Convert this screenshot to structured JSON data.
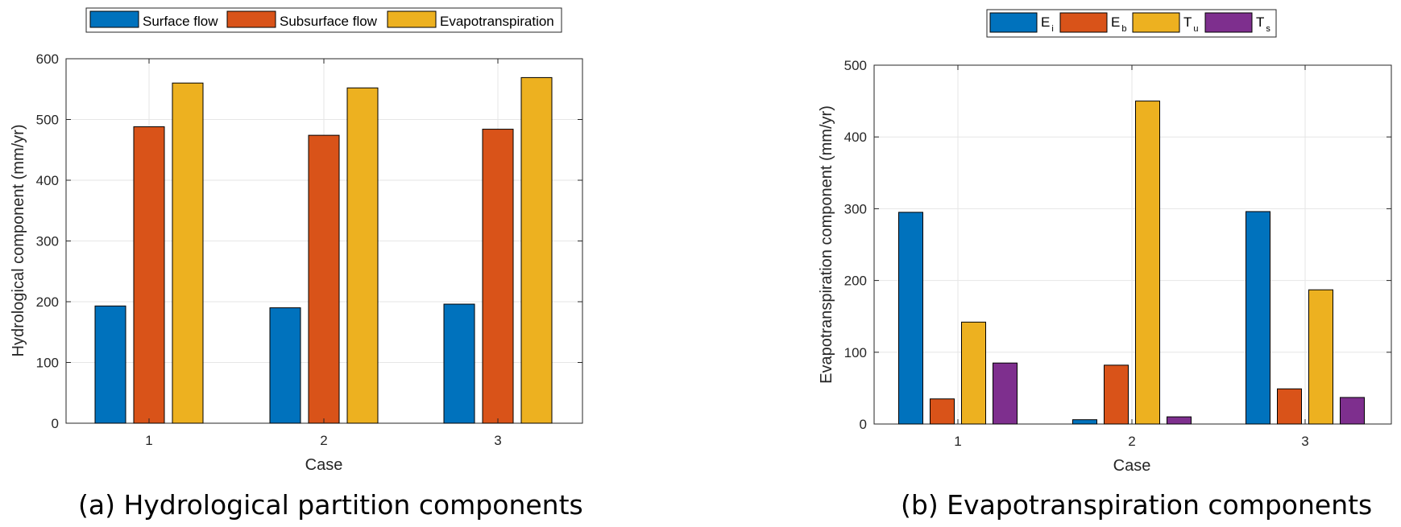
{
  "chart_data": [
    {
      "type": "bar",
      "title": "",
      "caption": "(a) Hydrological partition components",
      "xlabel": "Case",
      "ylabel": "Hydrological component (mm/yr)",
      "categories": [
        "1",
        "2",
        "3"
      ],
      "ylim": [
        0,
        600
      ],
      "yticks": [
        0,
        100,
        200,
        300,
        400,
        500,
        600
      ],
      "grid": true,
      "legend_position": "top",
      "series": [
        {
          "name": "Surface flow",
          "color": "#0072BD",
          "values": [
            193,
            190,
            196
          ]
        },
        {
          "name": "Subsurface flow",
          "color": "#D95319",
          "values": [
            488,
            474,
            484
          ]
        },
        {
          "name": "Evapotranspiration",
          "color": "#EDB120",
          "values": [
            560,
            552,
            569
          ]
        }
      ]
    },
    {
      "type": "bar",
      "title": "",
      "caption": "(b) Evapotranspiration components",
      "xlabel": "Case",
      "ylabel": "Evapotranspiration component (mm/yr)",
      "categories": [
        "1",
        "2",
        "3"
      ],
      "ylim": [
        0,
        500
      ],
      "yticks": [
        0,
        100,
        200,
        300,
        400,
        500
      ],
      "grid": true,
      "legend_position": "top",
      "series": [
        {
          "name": "E",
          "subscript": "i",
          "color": "#0072BD",
          "values": [
            295,
            6,
            296
          ]
        },
        {
          "name": "E",
          "subscript": "b",
          "color": "#D95319",
          "values": [
            35,
            82,
            49
          ]
        },
        {
          "name": "T",
          "subscript": "u",
          "color": "#EDB120",
          "values": [
            142,
            450,
            187
          ]
        },
        {
          "name": "T",
          "subscript": "s",
          "color": "#7E2F8E",
          "values": [
            85,
            10,
            37
          ]
        }
      ]
    }
  ]
}
